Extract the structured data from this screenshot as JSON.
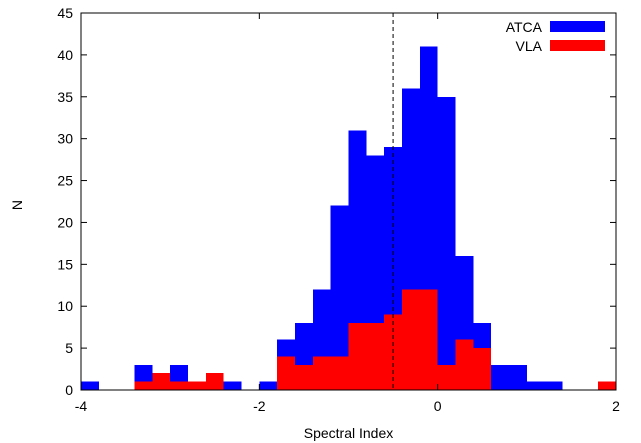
{
  "chart_data": {
    "type": "bar",
    "title": "",
    "xlabel": "Spectral Index",
    "ylabel": "N",
    "xlim": [
      -4,
      2
    ],
    "ylim": [
      0,
      45
    ],
    "xticks": [
      -4,
      -2,
      0,
      2
    ],
    "yticks": [
      0,
      5,
      10,
      15,
      20,
      25,
      30,
      35,
      40,
      45
    ],
    "grid": false,
    "legend_position": "top-right",
    "bin_width": 0.2,
    "bin_starts": [
      -4.0,
      -3.8,
      -3.6,
      -3.4,
      -3.2,
      -3.0,
      -2.8,
      -2.6,
      -2.4,
      -2.2,
      -2.0,
      -1.8,
      -1.6,
      -1.4,
      -1.2,
      -1.0,
      -0.8,
      -0.6,
      -0.4,
      -0.2,
      0.0,
      0.2,
      0.4,
      0.6,
      0.8,
      1.0,
      1.2,
      1.4,
      1.6,
      1.8
    ],
    "vertical_line_x": -0.5,
    "series": [
      {
        "name": "ATCA",
        "color": "#0000ff",
        "values": [
          1,
          0,
          0,
          3,
          0,
          3,
          0,
          0,
          1,
          0,
          1,
          6,
          8,
          12,
          22,
          31,
          28,
          29,
          36,
          41,
          35,
          16,
          8,
          3,
          3,
          1,
          1,
          0,
          0,
          0
        ]
      },
      {
        "name": "VLA",
        "color": "#ff0000",
        "values": [
          0,
          0,
          0,
          1,
          2,
          1,
          1,
          2,
          0,
          0,
          0,
          4,
          3,
          4,
          4,
          8,
          8,
          9,
          12,
          12,
          3,
          6,
          5,
          0,
          0,
          0,
          0,
          0,
          0,
          1
        ]
      }
    ]
  }
}
